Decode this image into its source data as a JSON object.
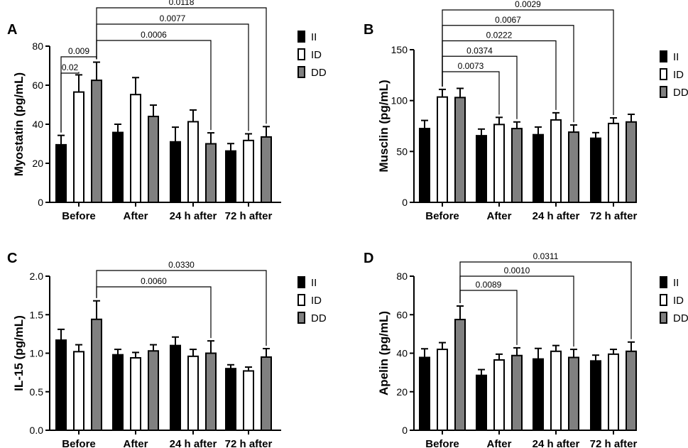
{
  "colors": {
    "II": "#000000",
    "ID": "#ffffff",
    "DD": "#808080",
    "axis": "#000000",
    "bracket": "#000000"
  },
  "chart_data": [
    {
      "panel": "A",
      "type": "bar",
      "ylabel": "Myostatin (pg/mL)",
      "ylim": [
        0,
        80
      ],
      "yticks": [
        0,
        20,
        40,
        60,
        80
      ],
      "categories": [
        "Before",
        "After",
        "24 h after",
        "72 h after"
      ],
      "series": [
        {
          "name": "II",
          "values": [
            29.5,
            35.8,
            31.0,
            26.3
          ],
          "errors": [
            4.8,
            4.2,
            7.5,
            3.8
          ]
        },
        {
          "name": "ID",
          "values": [
            56.5,
            55.2,
            41.3,
            31.7
          ],
          "errors": [
            8.8,
            8.7,
            6.0,
            3.4
          ]
        },
        {
          "name": "DD",
          "values": [
            62.5,
            44.0,
            30.0,
            33.5
          ],
          "errors": [
            9.3,
            5.8,
            5.6,
            5.3
          ]
        }
      ],
      "comparisons": [
        {
          "label": "0.02",
          "from": [
            0,
            0
          ],
          "to": [
            0,
            1
          ]
        },
        {
          "label": "0.009",
          "from": [
            0,
            0
          ],
          "to": [
            0,
            2
          ]
        },
        {
          "label": "0.0006",
          "from": [
            0,
            2
          ],
          "to": [
            2,
            2
          ]
        },
        {
          "label": "0.0077",
          "from": [
            0,
            2
          ],
          "to": [
            3,
            1
          ]
        },
        {
          "label": "0.0118",
          "from": [
            0,
            2
          ],
          "to": [
            3,
            2
          ]
        }
      ]
    },
    {
      "panel": "B",
      "type": "bar",
      "ylabel": "Musclin (pg/mL)",
      "ylim": [
        0,
        150
      ],
      "yticks": [
        0,
        50,
        100,
        150
      ],
      "categories": [
        "Before",
        "After",
        "24 h after",
        "72 h after"
      ],
      "series": [
        {
          "name": "II",
          "values": [
            72.5,
            65.5,
            66.5,
            63.0
          ],
          "errors": [
            8.0,
            6.5,
            7.5,
            5.5
          ]
        },
        {
          "name": "ID",
          "values": [
            103.5,
            76.5,
            81.0,
            77.5
          ],
          "errors": [
            7.5,
            7.0,
            7.0,
            5.5
          ]
        },
        {
          "name": "DD",
          "values": [
            103.0,
            72.5,
            69.0,
            79.0
          ],
          "errors": [
            9.0,
            6.5,
            7.0,
            7.5
          ]
        }
      ],
      "comparisons": [
        {
          "label": "0.0073",
          "from": [
            0,
            1
          ],
          "to": [
            1,
            1
          ]
        },
        {
          "label": "0.0374",
          "from": [
            0,
            1
          ],
          "to": [
            1,
            2
          ]
        },
        {
          "label": "0.0222",
          "from": [
            0,
            1
          ],
          "to": [
            2,
            1
          ]
        },
        {
          "label": "0.0067",
          "from": [
            0,
            1
          ],
          "to": [
            2,
            2
          ]
        },
        {
          "label": "0.0029",
          "from": [
            0,
            1
          ],
          "to": [
            3,
            1
          ]
        }
      ]
    },
    {
      "panel": "C",
      "type": "bar",
      "ylabel": "IL-15 (pg/mL)",
      "ylim": [
        0,
        2.0
      ],
      "yticks": [
        "0.0",
        "0.5",
        "1.0",
        "1.5",
        "2.0"
      ],
      "categories": [
        "Before",
        "After",
        "24 h after",
        "72 h after"
      ],
      "series": [
        {
          "name": "II",
          "values": [
            1.17,
            0.98,
            1.1,
            0.8
          ],
          "errors": [
            0.14,
            0.07,
            0.11,
            0.05
          ]
        },
        {
          "name": "ID",
          "values": [
            1.02,
            0.94,
            0.96,
            0.77
          ],
          "errors": [
            0.09,
            0.07,
            0.09,
            0.05
          ]
        },
        {
          "name": "DD",
          "values": [
            1.44,
            1.03,
            1.0,
            0.95
          ],
          "errors": [
            0.24,
            0.08,
            0.16,
            0.11
          ]
        }
      ],
      "comparisons": [
        {
          "label": "0.0060",
          "from": [
            0,
            2
          ],
          "to": [
            2,
            2
          ]
        },
        {
          "label": "0.0330",
          "from": [
            0,
            2
          ],
          "to": [
            3,
            2
          ]
        }
      ]
    },
    {
      "panel": "D",
      "type": "bar",
      "ylabel": "Apelin (pg/mL)",
      "ylim": [
        0,
        80
      ],
      "yticks": [
        0,
        20,
        40,
        60,
        80
      ],
      "categories": [
        "Before",
        "After",
        "24 h after",
        "72 h after"
      ],
      "series": [
        {
          "name": "II",
          "values": [
            37.8,
            28.5,
            37.0,
            36.0
          ],
          "errors": [
            4.5,
            3.0,
            5.5,
            3.0
          ]
        },
        {
          "name": "ID",
          "values": [
            42.0,
            36.5,
            41.0,
            39.5
          ],
          "errors": [
            3.5,
            3.0,
            3.0,
            2.5
          ]
        },
        {
          "name": "DD",
          "values": [
            57.5,
            38.8,
            37.8,
            41.0
          ],
          "errors": [
            7.0,
            4.0,
            4.2,
            4.8
          ]
        }
      ],
      "comparisons": [
        {
          "label": "0.0089",
          "from": [
            0,
            2
          ],
          "to": [
            1,
            2
          ]
        },
        {
          "label": "0.0010",
          "from": [
            0,
            2
          ],
          "to": [
            2,
            2
          ]
        },
        {
          "label": "0.0311",
          "from": [
            0,
            2
          ],
          "to": [
            3,
            2
          ]
        }
      ]
    }
  ]
}
